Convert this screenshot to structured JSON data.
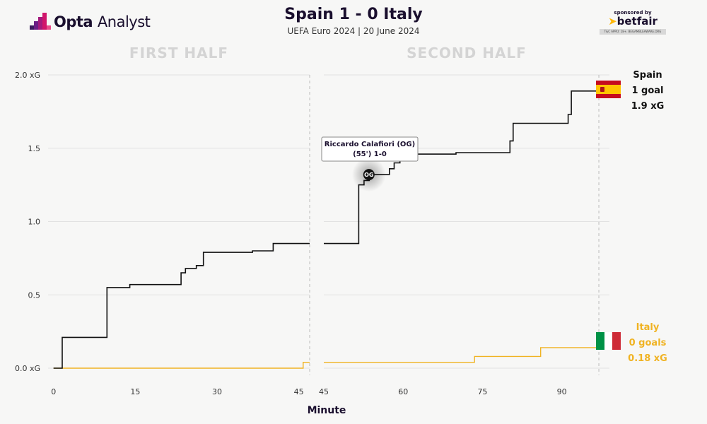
{
  "header": {
    "logo_brand": "Opta",
    "logo_product": "Analyst",
    "title": "Spain 1 - 0 Italy",
    "subtitle": "UEFA Euro 2024 | 20 June 2024",
    "sponsor_line": "sponsored by",
    "sponsor_brand": "betfair",
    "sponsor_tc": "T&C APPLY. 18+. BEGAMBLEAWARE.ORG"
  },
  "colors": {
    "spain": "#111111",
    "italy": "#f0b323",
    "grid": "#e2e2e2",
    "half_title": "#d4d4d4",
    "background": "#f7f7f6"
  },
  "chart_data": {
    "type": "line",
    "step": true,
    "xlabel": "Minute",
    "ylabel": "",
    "y_unit": "xG",
    "ylim": [
      0,
      2.0
    ],
    "yticks": [
      0,
      0.5,
      1.0,
      1.5,
      2.0
    ],
    "ytick_labels": [
      "0.0 xG",
      "0.5",
      "1.0",
      "1.5",
      "2.0 xG"
    ],
    "grid": true,
    "panels": [
      {
        "title": "FIRST HALF",
        "xlim": [
          -1,
          47
        ],
        "xticks": [
          0,
          15,
          30,
          45
        ],
        "end_marker": 47
      },
      {
        "title": "SECOND HALF",
        "xlim": [
          45,
          99
        ],
        "xticks": [
          45,
          60,
          75,
          90
        ],
        "end_marker": 97
      }
    ],
    "series": [
      {
        "name": "Spain",
        "color": "#111111",
        "first_half": [
          [
            0,
            0
          ],
          [
            1.6,
            0
          ],
          [
            1.6,
            0.21
          ],
          [
            9.8,
            0.21
          ],
          [
            9.8,
            0.55
          ],
          [
            14,
            0.55
          ],
          [
            14,
            0.57
          ],
          [
            23.4,
            0.57
          ],
          [
            23.4,
            0.65
          ],
          [
            24.2,
            0.65
          ],
          [
            24.2,
            0.68
          ],
          [
            26.2,
            0.68
          ],
          [
            26.2,
            0.7
          ],
          [
            27.5,
            0.7
          ],
          [
            27.5,
            0.79
          ],
          [
            36.5,
            0.79
          ],
          [
            36.5,
            0.8
          ],
          [
            40.3,
            0.8
          ],
          [
            40.3,
            0.85
          ],
          [
            47,
            0.85
          ]
        ],
        "second_half": [
          [
            45,
            0.85
          ],
          [
            51.6,
            0.85
          ],
          [
            51.6,
            1.25
          ],
          [
            52.6,
            1.25
          ],
          [
            52.6,
            1.28
          ],
          [
            53.6,
            1.28
          ],
          [
            53.6,
            1.32
          ],
          [
            57.4,
            1.32
          ],
          [
            57.4,
            1.36
          ],
          [
            58.3,
            1.36
          ],
          [
            58.3,
            1.4
          ],
          [
            59.4,
            1.4
          ],
          [
            59.4,
            1.44
          ],
          [
            60.6,
            1.44
          ],
          [
            60.6,
            1.46
          ],
          [
            70,
            1.46
          ],
          [
            70,
            1.47
          ],
          [
            80.2,
            1.47
          ],
          [
            80.2,
            1.55
          ],
          [
            80.8,
            1.55
          ],
          [
            80.8,
            1.67
          ],
          [
            91.2,
            1.67
          ],
          [
            91.2,
            1.73
          ],
          [
            91.8,
            1.73
          ],
          [
            91.8,
            1.89
          ],
          [
            97,
            1.89
          ]
        ]
      },
      {
        "name": "Italy",
        "color": "#f0b323",
        "first_half": [
          [
            0,
            0
          ],
          [
            45.8,
            0
          ],
          [
            45.8,
            0.04
          ],
          [
            47,
            0.04
          ]
        ],
        "second_half": [
          [
            45,
            0.04
          ],
          [
            73.5,
            0.04
          ],
          [
            73.5,
            0.08
          ],
          [
            86,
            0.08
          ],
          [
            86,
            0.14
          ],
          [
            97,
            0.14
          ],
          [
            97,
            0.18
          ]
        ]
      }
    ],
    "annotations": [
      {
        "badge": "OG",
        "minute": 55,
        "xg": 1.32,
        "line1": "Riccardo Calafiori (OG)",
        "line2": "(55') 1-0"
      }
    ],
    "legend": [
      {
        "team": "Spain",
        "goals": "1 goal",
        "xg": "1.9 xG",
        "color": "#111111",
        "flag": "spain-flag"
      },
      {
        "team": "Italy",
        "goals": "0 goals",
        "xg": "0.18 xG",
        "color": "#f0b323",
        "flag": "italy-flag"
      }
    ]
  }
}
